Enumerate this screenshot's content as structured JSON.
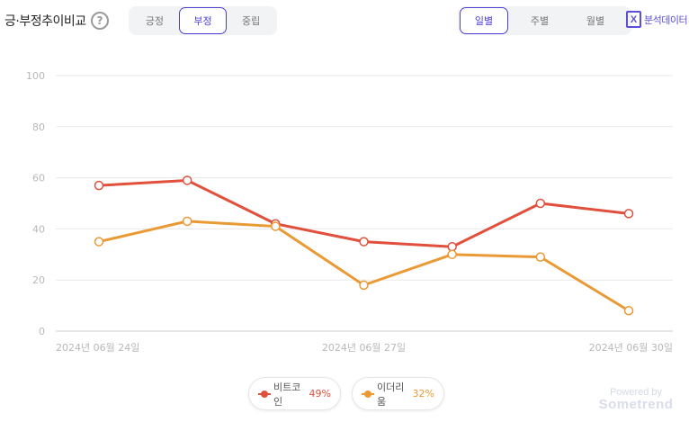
{
  "header": {
    "title": "긍·부정추이비교",
    "help_icon": "question-circle-icon"
  },
  "sentiment_tabs": [
    {
      "label": "긍정",
      "active": false
    },
    {
      "label": "부정",
      "active": true
    },
    {
      "label": "중립",
      "active": false
    }
  ],
  "period_tabs": [
    {
      "label": "일별",
      "active": true
    },
    {
      "label": "주별",
      "active": false
    },
    {
      "label": "월별",
      "active": false
    }
  ],
  "export": {
    "icon": "excel-icon",
    "icon_glyph": "X",
    "label": "분석데이터"
  },
  "colors": {
    "accent": "#4a3fd0",
    "bitcoin": "#e0503c",
    "ethereum": "#ea9a35",
    "grid": "#e9e9e9"
  },
  "chart_data": {
    "type": "line",
    "x": [
      "2024-06-24",
      "2024-06-25",
      "2024-06-26",
      "2024-06-27",
      "2024-06-28",
      "2024-06-29",
      "2024-06-30"
    ],
    "x_tick_labels": [
      "2024년 06월 24일",
      "2024년 06월 27일",
      "2024년 06월 30일"
    ],
    "y_ticks": [
      0,
      20,
      40,
      60,
      80,
      100
    ],
    "ylim": [
      0,
      100
    ],
    "grid": true,
    "legend_position": "bottom-center",
    "series": [
      {
        "name": "비트코인",
        "percent": "49%",
        "color": "#e0503c",
        "values": [
          57,
          59,
          42,
          35,
          33,
          50,
          46
        ]
      },
      {
        "name": "이더리움",
        "percent": "32%",
        "color": "#ea9a35",
        "values": [
          35,
          43,
          41,
          18,
          30,
          29,
          8
        ]
      }
    ]
  },
  "legend": [
    {
      "name": "비트코인",
      "percent": "49%"
    },
    {
      "name": "이더리움",
      "percent": "32%"
    }
  ],
  "branding": {
    "powered_by": "Powered by",
    "brand": "Sometrend"
  }
}
